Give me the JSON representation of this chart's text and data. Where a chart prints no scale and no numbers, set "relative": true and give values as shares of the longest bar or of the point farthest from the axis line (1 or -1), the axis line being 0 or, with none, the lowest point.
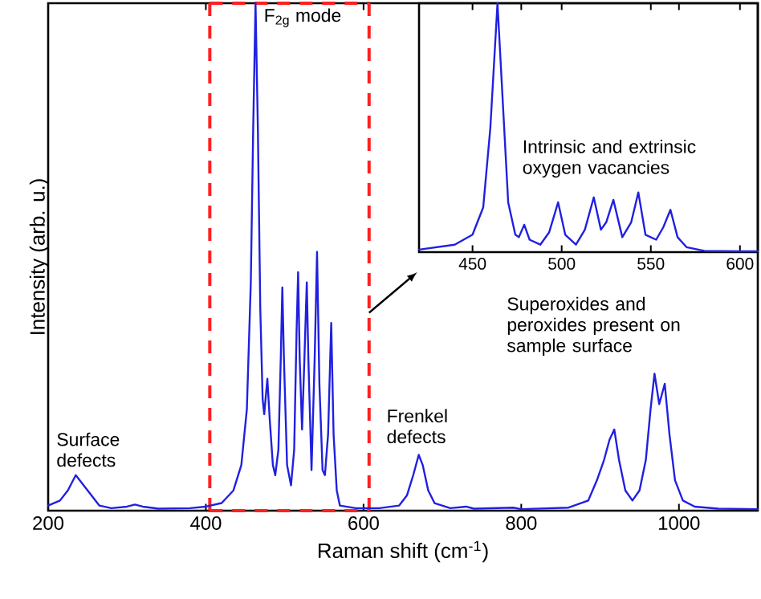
{
  "chart_data": [
    {
      "type": "line",
      "xlabel": "Raman shift (cm$^{-1}$)",
      "ylabel": "Intensity (arb. u.)",
      "relative": true,
      "xlim": [
        200,
        1100
      ],
      "xticks": [
        200,
        400,
        600,
        800,
        1000
      ],
      "series": [
        {
          "color": "#2020e0",
          "x": [
            200,
            215,
            225,
            235,
            245,
            255,
            265,
            280,
            300,
            310,
            320,
            340,
            380,
            400,
            420,
            435,
            445,
            452,
            457,
            460,
            463,
            466,
            469,
            472,
            474,
            478,
            481,
            485,
            488,
            492,
            495,
            497,
            499,
            503,
            508,
            512,
            515,
            517,
            519,
            522,
            525,
            528,
            530,
            534,
            538,
            541,
            544,
            548,
            551,
            555,
            559,
            562,
            566,
            570,
            590,
            620,
            645,
            655,
            663,
            670,
            675,
            682,
            690,
            710,
            730,
            740,
            790,
            800,
            860,
            885,
            896,
            905,
            912,
            918,
            924,
            932,
            941,
            950,
            958,
            964,
            969,
            975,
            982,
            988,
            995,
            1005,
            1020,
            1050,
            1100
          ],
          "values": [
            0.01,
            0.02,
            0.04,
            0.07,
            0.05,
            0.03,
            0.01,
            0.005,
            0.008,
            0.012,
            0.008,
            0.004,
            0.005,
            0.008,
            0.015,
            0.04,
            0.09,
            0.2,
            0.45,
            0.75,
            1.0,
            0.75,
            0.4,
            0.22,
            0.19,
            0.26,
            0.18,
            0.09,
            0.07,
            0.12,
            0.3,
            0.44,
            0.3,
            0.09,
            0.05,
            0.12,
            0.35,
            0.47,
            0.3,
            0.16,
            0.3,
            0.45,
            0.3,
            0.08,
            0.3,
            0.51,
            0.25,
            0.08,
            0.07,
            0.15,
            0.37,
            0.15,
            0.04,
            0.01,
            0.005,
            0.005,
            0.01,
            0.03,
            0.07,
            0.11,
            0.09,
            0.04,
            0.015,
            0.005,
            0.008,
            0.004,
            0.006,
            0.003,
            0.006,
            0.02,
            0.06,
            0.1,
            0.14,
            0.16,
            0.1,
            0.04,
            0.02,
            0.04,
            0.1,
            0.2,
            0.27,
            0.21,
            0.25,
            0.15,
            0.06,
            0.02,
            0.008,
            0.004,
            0.003
          ]
        }
      ],
      "ref_lines": [
        {
          "axis": "x",
          "value": 405,
          "color": "#ff2020",
          "line_style": "dashed"
        },
        {
          "axis": "x",
          "value": 607,
          "color": "#ff2020",
          "line_style": "dashed"
        }
      ],
      "annotations": [
        {
          "text": "Surface defects",
          "x": 235,
          "y": 0.07
        },
        {
          "text": "F$_{2g}$ mode",
          "x": 463,
          "y": 1.0
        },
        {
          "text": "Frenkel defects",
          "x": 670,
          "y": 0.11
        },
        {
          "text": "Superoxides and peroxides present on sample surface",
          "x": 969,
          "y": 0.27
        }
      ]
    },
    {
      "type": "line",
      "relative": true,
      "xlim": [
        420,
        610
      ],
      "xticks": [
        450,
        500,
        550,
        600
      ],
      "series": [
        {
          "color": "#2020e0",
          "x": [
            420,
            440,
            450,
            456,
            460,
            464,
            467,
            470,
            474,
            476,
            479,
            482,
            488,
            493,
            498,
            502,
            508,
            513,
            518,
            522,
            525,
            529,
            534,
            539,
            543,
            547,
            553,
            557,
            561,
            565,
            570,
            580,
            600,
            610
          ],
          "values": [
            0.01,
            0.03,
            0.07,
            0.18,
            0.5,
            1.0,
            0.6,
            0.2,
            0.07,
            0.06,
            0.11,
            0.05,
            0.03,
            0.08,
            0.2,
            0.07,
            0.03,
            0.09,
            0.22,
            0.09,
            0.12,
            0.21,
            0.06,
            0.12,
            0.24,
            0.07,
            0.05,
            0.1,
            0.17,
            0.06,
            0.02,
            0.005,
            0.003,
            0.003
          ]
        }
      ],
      "annotations": [
        {
          "text": "Intrinsic and extrinsic oxygen vacancies",
          "x": 541,
          "y": 0.24
        }
      ]
    }
  ]
}
